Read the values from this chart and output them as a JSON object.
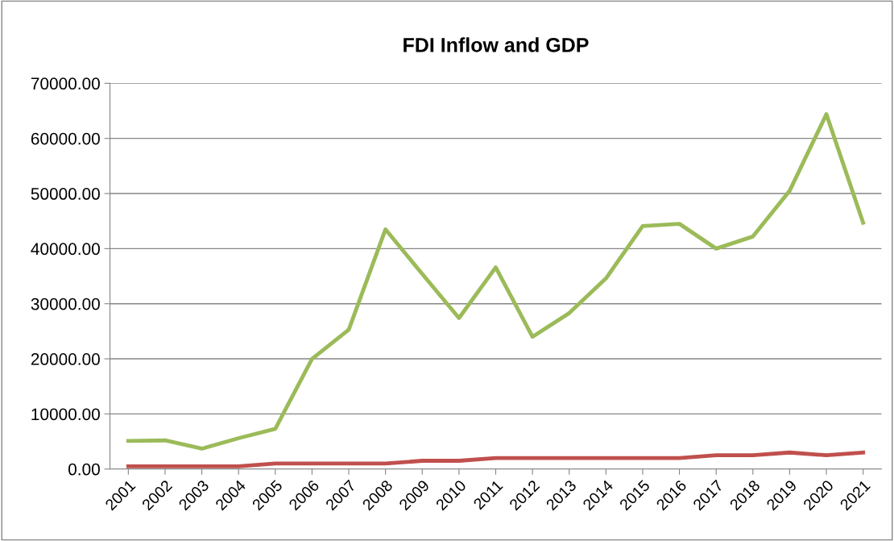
{
  "chart_data": {
    "type": "line",
    "title": "FDI Inflow and GDP",
    "categories": [
      "2001",
      "2002",
      "2003",
      "2004",
      "2005",
      "2006",
      "2007",
      "2008",
      "2009",
      "2010",
      "2011",
      "2012",
      "2013",
      "2014",
      "2015",
      "2016",
      "2017",
      "2018",
      "2019",
      "2020",
      "2021"
    ],
    "series": [
      {
        "color": "#9bbb59",
        "values": [
          5100,
          5200,
          3700,
          5600,
          7300,
          20000,
          25300,
          43500,
          35400,
          27400,
          36600,
          24000,
          28300,
          34600,
          44100,
          44500,
          40000,
          42200,
          50500,
          64400,
          44700
        ]
      },
      {
        "color": "#c0504d",
        "values": [
          500,
          500,
          500,
          500,
          1000,
          1000,
          1000,
          1000,
          1500,
          1500,
          2000,
          2000,
          2000,
          2000,
          2000,
          2000,
          2500,
          2500,
          3000,
          2500,
          3000
        ]
      }
    ],
    "ylim": [
      0,
      70000
    ],
    "yticks": [
      {
        "value": 0,
        "label": "0.00"
      },
      {
        "value": 10000,
        "label": "10000.00"
      },
      {
        "value": 20000,
        "label": "20000.00"
      },
      {
        "value": 30000,
        "label": "30000.00"
      },
      {
        "value": 40000,
        "label": "40000.00"
      },
      {
        "value": 50000,
        "label": "50000.00"
      },
      {
        "value": 60000,
        "label": "60000.00"
      },
      {
        "value": 70000,
        "label": "70000.00"
      }
    ],
    "grid": "y",
    "marker": "none",
    "line_style": "solid"
  }
}
